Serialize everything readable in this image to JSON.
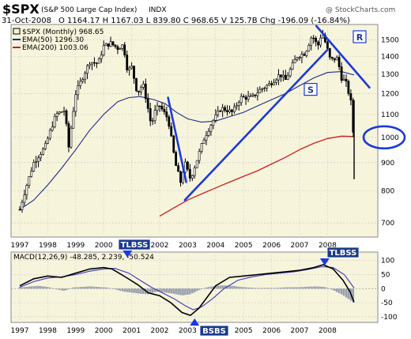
{
  "header": {
    "symbol": "$SPX",
    "name": "(S&P 500 Large Cap Index)",
    "exchange": "INDX",
    "date": "31-Oct-2008",
    "ohlc": "O 1164.17  H 1167.03  L 839.80  C 968.65  V 125.7B  Chg -196.09 (-16.84%)",
    "copyright": "@ StockCharts.com"
  },
  "colors": {
    "plot_bg": "#f7f4dc",
    "ema50": "#1f2a8a",
    "ema200": "#cc1f1f",
    "annot": "#1a3adb",
    "macd": "#000000",
    "signal": "#3a3ab8",
    "hist": "#9aa0b0"
  },
  "chart_data": [
    {
      "type": "candlestick",
      "title": "$SPX (Monthly) 968.65",
      "x_tick_labels": [
        "1997",
        "1998",
        "1999",
        "2000",
        "2001",
        "2002",
        "2003",
        "2004",
        "2005",
        "2006",
        "2007",
        "2008"
      ],
      "y_ticks": [
        700,
        800,
        900,
        1000,
        1100,
        1200,
        1300,
        1400,
        1500
      ],
      "y_scale": "log",
      "ylim": [
        660,
        1600
      ],
      "legend": [
        {
          "label": "$SPX (Monthly) 968.65"
        },
        {
          "label": "EMA(50) 1296.30"
        },
        {
          "label": "EMA(200) 1003.06"
        }
      ],
      "price_points": [
        [
          1997.0,
          740
        ],
        [
          1997.5,
          900
        ],
        [
          1997.9,
          960
        ],
        [
          1998.3,
          1100
        ],
        [
          1998.6,
          1120
        ],
        [
          1998.75,
          960
        ],
        [
          1999.0,
          1200
        ],
        [
          1999.5,
          1370
        ],
        [
          1999.8,
          1360
        ],
        [
          2000.0,
          1460
        ],
        [
          2000.25,
          1480
        ],
        [
          2000.5,
          1450
        ],
        [
          2000.7,
          1470
        ],
        [
          2000.85,
          1320
        ],
        [
          2001.0,
          1340
        ],
        [
          2001.2,
          1200
        ],
        [
          2001.4,
          1250
        ],
        [
          2001.7,
          1050
        ],
        [
          2001.85,
          1120
        ],
        [
          2002.0,
          1140
        ],
        [
          2002.3,
          1080
        ],
        [
          2002.55,
          900
        ],
        [
          2002.75,
          830
        ],
        [
          2002.9,
          900
        ],
        [
          2003.1,
          840
        ],
        [
          2003.3,
          900
        ],
        [
          2003.6,
          1000
        ],
        [
          2003.9,
          1070
        ],
        [
          2004.2,
          1130
        ],
        [
          2004.6,
          1110
        ],
        [
          2004.9,
          1180
        ],
        [
          2005.3,
          1180
        ],
        [
          2005.6,
          1220
        ],
        [
          2005.95,
          1250
        ],
        [
          2006.3,
          1300
        ],
        [
          2006.5,
          1270
        ],
        [
          2006.9,
          1400
        ],
        [
          2007.2,
          1420
        ],
        [
          2007.45,
          1530
        ],
        [
          2007.65,
          1460
        ],
        [
          2007.8,
          1550
        ],
        [
          2007.95,
          1470
        ],
        [
          2008.1,
          1380
        ],
        [
          2008.35,
          1390
        ],
        [
          2008.5,
          1280
        ],
        [
          2008.65,
          1260
        ],
        [
          2008.83,
          1164
        ],
        [
          2008.95,
          968.65
        ]
      ],
      "ema50_points": [
        [
          1997.0,
          740
        ],
        [
          1997.5,
          770
        ],
        [
          1998.0,
          820
        ],
        [
          1998.5,
          880
        ],
        [
          1999.0,
          950
        ],
        [
          1999.5,
          1030
        ],
        [
          2000.0,
          1100
        ],
        [
          2000.5,
          1160
        ],
        [
          2000.9,
          1180
        ],
        [
          2001.3,
          1185
        ],
        [
          2001.8,
          1170
        ],
        [
          2002.2,
          1150
        ],
        [
          2002.6,
          1110
        ],
        [
          2003.0,
          1080
        ],
        [
          2003.5,
          1065
        ],
        [
          2004.0,
          1070
        ],
        [
          2004.5,
          1090
        ],
        [
          2005.0,
          1110
        ],
        [
          2005.5,
          1140
        ],
        [
          2006.0,
          1170
        ],
        [
          2006.5,
          1200
        ],
        [
          2007.0,
          1240
        ],
        [
          2007.5,
          1280
        ],
        [
          2008.0,
          1310
        ],
        [
          2008.5,
          1315
        ],
        [
          2008.95,
          1296.3
        ]
      ],
      "ema200_points": [
        [
          2002.0,
          720
        ],
        [
          2002.5,
          745
        ],
        [
          2003.0,
          770
        ],
        [
          2003.5,
          790
        ],
        [
          2004.0,
          810
        ],
        [
          2004.5,
          830
        ],
        [
          2005.0,
          850
        ],
        [
          2005.5,
          870
        ],
        [
          2006.0,
          895
        ],
        [
          2006.5,
          920
        ],
        [
          2007.0,
          950
        ],
        [
          2007.5,
          975
        ],
        [
          2008.0,
          995
        ],
        [
          2008.5,
          1005
        ],
        [
          2008.95,
          1003.06
        ]
      ],
      "annotations": {
        "S": "S",
        "R": "R",
        "circle_level": 1000
      }
    },
    {
      "type": "line",
      "title": "MACD(12,26,9) -48.285, 2.239, -50.524",
      "x_tick_labels": [
        "1997",
        "1998",
        "1999",
        "2000",
        "2001",
        "2002",
        "2003",
        "2004",
        "2005",
        "2006",
        "2007",
        "2008"
      ],
      "y_ticks": [
        -100,
        -50,
        0,
        50,
        100
      ],
      "ylim": [
        -120,
        130
      ],
      "series": [
        {
          "values": [
            [
              1997.0,
              10
            ],
            [
              1997.5,
              35
            ],
            [
              1998.0,
              45
            ],
            [
              1998.5,
              40
            ],
            [
              1999.0,
              55
            ],
            [
              1999.5,
              70
            ],
            [
              2000.0,
              75
            ],
            [
              2000.3,
              70
            ],
            [
              2000.8,
              40
            ],
            [
              2001.2,
              15
            ],
            [
              2001.6,
              -15
            ],
            [
              2002.0,
              -25
            ],
            [
              2002.4,
              -50
            ],
            [
              2002.8,
              -85
            ],
            [
              2003.1,
              -95
            ],
            [
              2003.4,
              -70
            ],
            [
              2003.7,
              -30
            ],
            [
              2004.0,
              10
            ],
            [
              2004.5,
              40
            ],
            [
              2005.0,
              45
            ],
            [
              2005.5,
              50
            ],
            [
              2006.0,
              55
            ],
            [
              2006.5,
              60
            ],
            [
              2007.0,
              65
            ],
            [
              2007.5,
              75
            ],
            [
              2007.85,
              85
            ],
            [
              2008.2,
              70
            ],
            [
              2008.55,
              30
            ],
            [
              2008.8,
              -10
            ],
            [
              2008.95,
              -48.285
            ]
          ]
        },
        {
          "values": [
            [
              1997.0,
              5
            ],
            [
              1997.5,
              25
            ],
            [
              1998.0,
              38
            ],
            [
              1998.5,
              42
            ],
            [
              1999.0,
              50
            ],
            [
              1999.5,
              62
            ],
            [
              2000.0,
              70
            ],
            [
              2000.4,
              72
            ],
            [
              2000.9,
              55
            ],
            [
              2001.3,
              30
            ],
            [
              2001.7,
              5
            ],
            [
              2002.1,
              -15
            ],
            [
              2002.5,
              -35
            ],
            [
              2002.9,
              -60
            ],
            [
              2003.2,
              -75
            ],
            [
              2003.5,
              -65
            ],
            [
              2003.9,
              -35
            ],
            [
              2004.3,
              0
            ],
            [
              2004.8,
              30
            ],
            [
              2005.3,
              42
            ],
            [
              2005.8,
              50
            ],
            [
              2006.3,
              55
            ],
            [
              2006.8,
              60
            ],
            [
              2007.3,
              68
            ],
            [
              2007.8,
              78
            ],
            [
              2008.2,
              75
            ],
            [
              2008.6,
              50
            ],
            [
              2008.95,
              2.239
            ]
          ]
        }
      ],
      "histogram": [
        [
          1997.1,
          5
        ],
        [
          1997.4,
          8
        ],
        [
          1997.7,
          10
        ],
        [
          1998.0,
          6
        ],
        [
          1998.3,
          -2
        ],
        [
          1998.6,
          -8
        ],
        [
          1998.9,
          4
        ],
        [
          1999.2,
          6
        ],
        [
          1999.5,
          8
        ],
        [
          1999.8,
          6
        ],
        [
          2000.1,
          4
        ],
        [
          2000.4,
          -2
        ],
        [
          2000.7,
          -10
        ],
        [
          2001.0,
          -14
        ],
        [
          2001.3,
          -18
        ],
        [
          2001.6,
          -20
        ],
        [
          2001.9,
          -10
        ],
        [
          2002.2,
          -14
        ],
        [
          2002.5,
          -18
        ],
        [
          2002.8,
          -24
        ],
        [
          2003.1,
          -20
        ],
        [
          2003.4,
          -5
        ],
        [
          2003.7,
          5
        ],
        [
          2004.0,
          10
        ],
        [
          2004.3,
          12
        ],
        [
          2004.6,
          10
        ],
        [
          2004.9,
          6
        ],
        [
          2005.2,
          4
        ],
        [
          2005.5,
          2
        ],
        [
          2005.8,
          3
        ],
        [
          2006.1,
          2
        ],
        [
          2006.4,
          4
        ],
        [
          2006.7,
          5
        ],
        [
          2007.0,
          5
        ],
        [
          2007.3,
          7
        ],
        [
          2007.6,
          8
        ],
        [
          2007.9,
          6
        ],
        [
          2008.2,
          -5
        ],
        [
          2008.5,
          -20
        ],
        [
          2008.8,
          -40
        ],
        [
          2008.95,
          -50.524
        ]
      ],
      "annotations": {
        "tlbss_left": "TLBSS",
        "tlbss_right": "TLBSS",
        "bsbs": "BSBS"
      }
    }
  ]
}
